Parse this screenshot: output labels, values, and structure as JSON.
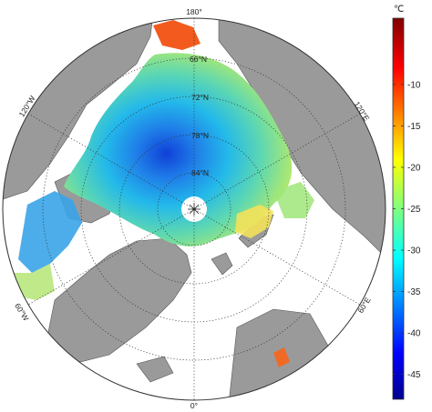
{
  "map": {
    "projection": "north-polar-stereographic",
    "longitude_labels": {
      "top": "180°",
      "bottom": "0°",
      "upper_left": "120°W",
      "upper_right": "120°E",
      "lower_left": "60°W",
      "lower_right": "60°E"
    },
    "latitude_labels": [
      "66°N",
      "72°N",
      "78°N",
      "84°N"
    ],
    "land_color": "#9a9a9a",
    "open_water_color": "#ffffff",
    "graticule_style": "dotted"
  },
  "colorbar": {
    "unit": "℃",
    "ticks": [
      "-10",
      "-15",
      "-20",
      "-25",
      "-30",
      "-35",
      "-40",
      "-45"
    ],
    "range": [
      -48,
      -2
    ],
    "colormap": "jet"
  }
}
